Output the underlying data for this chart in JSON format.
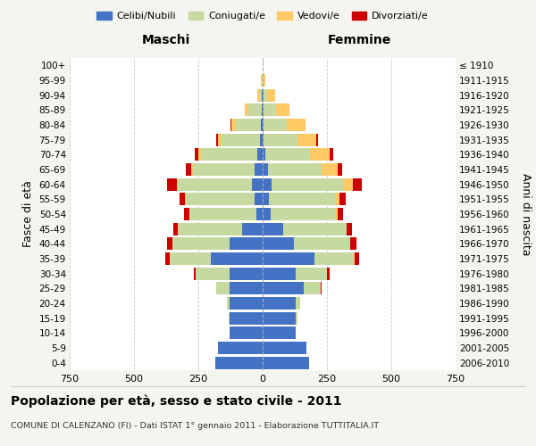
{
  "age_groups": [
    "0-4",
    "5-9",
    "10-14",
    "15-19",
    "20-24",
    "25-29",
    "30-34",
    "35-39",
    "40-44",
    "45-49",
    "50-54",
    "55-59",
    "60-64",
    "65-69",
    "70-74",
    "75-79",
    "80-84",
    "85-89",
    "90-94",
    "95-99",
    "100+"
  ],
  "birth_years": [
    "2006-2010",
    "2001-2005",
    "1996-2000",
    "1991-1995",
    "1986-1990",
    "1981-1985",
    "1976-1980",
    "1971-1975",
    "1966-1970",
    "1961-1965",
    "1956-1960",
    "1951-1955",
    "1946-1950",
    "1941-1945",
    "1936-1940",
    "1931-1935",
    "1926-1930",
    "1921-1925",
    "1916-1920",
    "1911-1915",
    "≤ 1910"
  ],
  "males": {
    "celibi": [
      185,
      175,
      130,
      130,
      130,
      130,
      130,
      200,
      130,
      80,
      25,
      30,
      40,
      30,
      20,
      10,
      8,
      5,
      2,
      1,
      0
    ],
    "coniugati": [
      0,
      0,
      0,
      3,
      10,
      50,
      130,
      160,
      220,
      250,
      260,
      270,
      290,
      240,
      220,
      150,
      95,
      50,
      8,
      2,
      0
    ],
    "vedovi": [
      0,
      0,
      0,
      0,
      0,
      0,
      0,
      0,
      0,
      0,
      1,
      2,
      5,
      8,
      10,
      12,
      20,
      15,
      10,
      3,
      0
    ],
    "divorziati": [
      0,
      0,
      0,
      0,
      0,
      2,
      8,
      20,
      20,
      18,
      18,
      20,
      35,
      20,
      15,
      8,
      2,
      0,
      0,
      0,
      0
    ]
  },
  "females": {
    "nubili": [
      180,
      170,
      130,
      130,
      130,
      160,
      130,
      200,
      120,
      80,
      30,
      25,
      35,
      20,
      10,
      5,
      5,
      3,
      2,
      1,
      0
    ],
    "coniugate": [
      0,
      0,
      0,
      4,
      15,
      65,
      120,
      155,
      220,
      245,
      255,
      260,
      280,
      210,
      175,
      130,
      90,
      50,
      15,
      3,
      0
    ],
    "vedove": [
      0,
      0,
      0,
      0,
      0,
      0,
      0,
      1,
      2,
      3,
      6,
      15,
      35,
      60,
      75,
      75,
      70,
      50,
      30,
      8,
      0
    ],
    "divorziate": [
      0,
      0,
      0,
      0,
      1,
      3,
      10,
      20,
      22,
      20,
      22,
      22,
      35,
      18,
      15,
      5,
      2,
      0,
      0,
      0,
      0
    ]
  },
  "colors": {
    "celibi": "#4472C4",
    "coniugati": "#c5d9a0",
    "vedovi": "#ffc966",
    "divorziati": "#cc0000"
  },
  "xlim": 750,
  "title": "Popolazione per età, sesso e stato civile - 2011",
  "subtitle": "COMUNE DI CALENZANO (FI) - Dati ISTAT 1° gennaio 2011 - Elaborazione TUTTITALIA.IT",
  "ylabel_left": "Fasce di età",
  "ylabel_right": "Anni di nascita",
  "xlabel_left": "Maschi",
  "xlabel_right": "Femmine",
  "legend_labels": [
    "Celibi/Nubili",
    "Coniugati/e",
    "Vedovi/e",
    "Divorziati/e"
  ],
  "bg_color": "#f5f5f0",
  "plot_bg": "#ffffff"
}
